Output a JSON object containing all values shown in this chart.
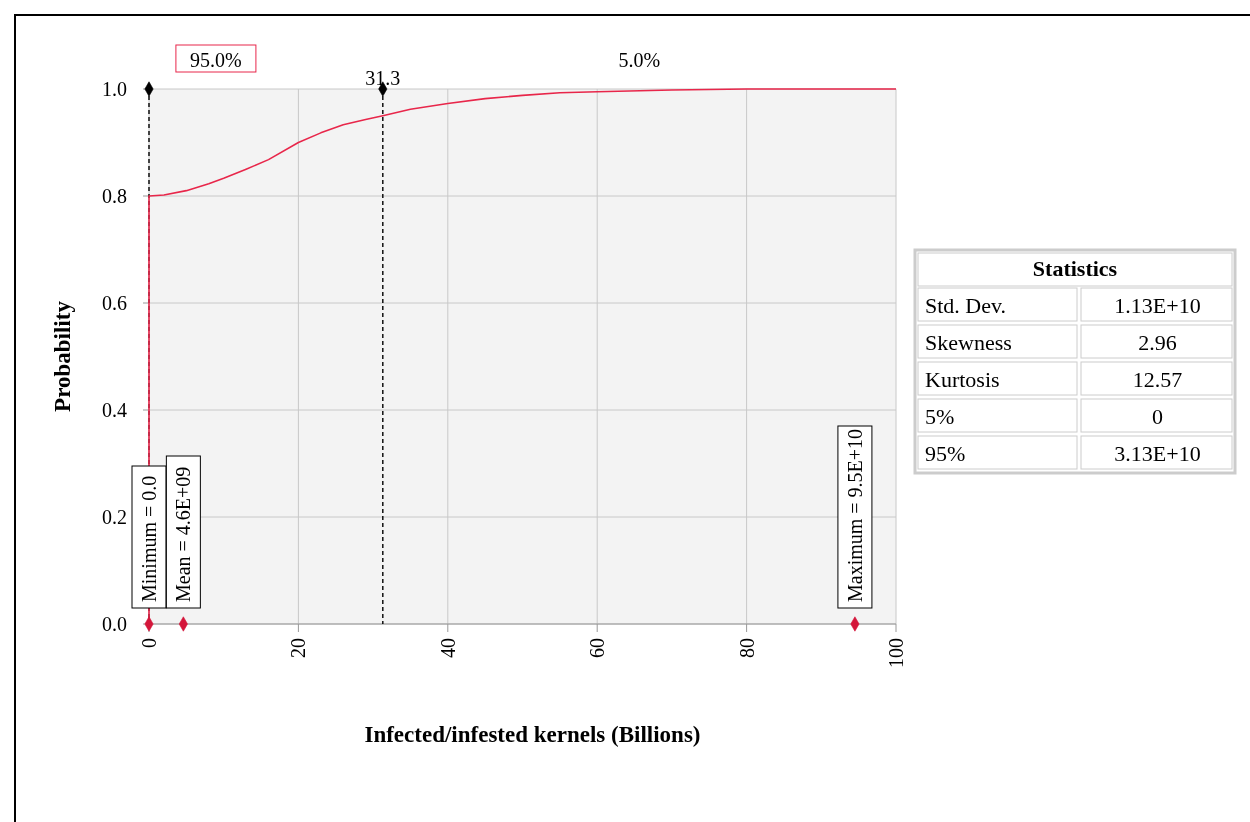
{
  "chart_data": [
    {
      "type": "line",
      "xlabel": "Infected/infested kernels (Billions)",
      "ylabel": "Probability",
      "xlim": [
        0,
        100
      ],
      "ylim": [
        0,
        1
      ],
      "xticks": [
        0,
        20,
        40,
        60,
        80,
        100
      ],
      "yticks": [
        {
          "value": 0,
          "label": "0.0"
        },
        {
          "value": 0.2,
          "label": "0.2"
        },
        {
          "value": 0.4,
          "label": "0.4"
        },
        {
          "value": 0.6,
          "label": "0.6"
        },
        {
          "value": 0.8,
          "label": "0.8"
        },
        {
          "value": 1,
          "label": "1.0"
        }
      ],
      "grid": true,
      "series": [
        {
          "type": "line",
          "color": "#e8264a",
          "marker": "none",
          "x": [
            0,
            0,
            2,
            5,
            8,
            10,
            13,
            16,
            20,
            23,
            26,
            29,
            31.3,
            35,
            40,
            45,
            50,
            55,
            60,
            70,
            80,
            100
          ],
          "values": [
            0,
            0.8,
            0.802,
            0.81,
            0.823,
            0.833,
            0.85,
            0.868,
            0.9,
            0.918,
            0.933,
            0.943,
            0.95,
            0.962,
            0.973,
            0.982,
            0.988,
            0.993,
            0.995,
            0.998,
            1,
            1
          ]
        },
        {
          "type": "scatter",
          "color": "#d4163a",
          "marker": "diamond",
          "x": [
            0,
            4.6,
            94.5
          ],
          "values": [
            0,
            0,
            0
          ]
        },
        {
          "type": "scatter",
          "color": "#000000",
          "marker": "diamond",
          "x": [
            0,
            31.3
          ],
          "values": [
            1,
            1
          ]
        }
      ],
      "ref_lines": [
        {
          "axis": "x",
          "value": 0,
          "color": "#000000",
          "line_style": "dashed"
        },
        {
          "axis": "x",
          "value": 31.3,
          "label": "31.3",
          "color": "#000000",
          "line_style": "dashed"
        }
      ],
      "annotations": [
        "95.0%",
        "5.0%",
        {
          "text": "Minimum = 0.0",
          "x": 0,
          "y": 0
        },
        {
          "text": "Mean = 4.6E+09",
          "x": 4.6,
          "y": 0
        },
        {
          "text": "Maximum = 9.5E+10",
          "x": 94.5,
          "y": 0
        }
      ]
    },
    {
      "type": "other",
      "title": "Statistics",
      "categories": [
        "Std. Dev.",
        "Skewness",
        "Kurtosis",
        "5%",
        "95%"
      ],
      "value_labels": [
        "1.13E+10",
        "2.96",
        "12.57",
        "0",
        "3.13E+10"
      ]
    }
  ]
}
